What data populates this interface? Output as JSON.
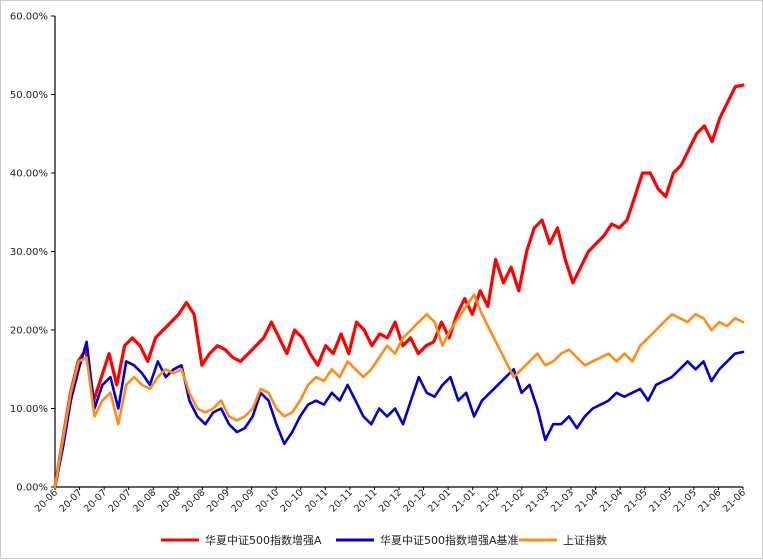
{
  "chart_data": {
    "type": "line",
    "title": "",
    "xlabel": "",
    "ylabel": "",
    "ylim": [
      0,
      60
    ],
    "y_ticks": [
      "0.00%",
      "10.00%",
      "20.00%",
      "30.00%",
      "40.00%",
      "50.00%",
      "60.00%"
    ],
    "x_ticks": [
      "20-06",
      "20-07",
      "20-07",
      "20-07",
      "20-08",
      "20-08",
      "20-08",
      "20-09",
      "20-09",
      "20-10",
      "20-10",
      "20-11",
      "20-11",
      "20-11",
      "20-12",
      "20-12",
      "21-01",
      "21-01",
      "21-02",
      "21-02",
      "21-03",
      "21-03",
      "21-04",
      "21-04",
      "21-05",
      "21-05",
      "21-05",
      "21-06",
      "21-06"
    ],
    "grid": false,
    "legend_position": "bottom",
    "series": [
      {
        "name": "华夏中证500指数增强A",
        "color": "#ff0000",
        "values": [
          0,
          6,
          12,
          16,
          17.5,
          11,
          14,
          17,
          13,
          18,
          19,
          18,
          16,
          19,
          20,
          21,
          22,
          23.5,
          22,
          15.5,
          17,
          18,
          17.5,
          16.5,
          16,
          17,
          18,
          19,
          21,
          19,
          17,
          20,
          19,
          17,
          15.5,
          18,
          17,
          19.5,
          17,
          21,
          20,
          18,
          19.5,
          19,
          21,
          18,
          19,
          17,
          18,
          18.5,
          21,
          19,
          22,
          24,
          22,
          25,
          23,
          29,
          26,
          28,
          25,
          30,
          33,
          34,
          31,
          33,
          29,
          26,
          28,
          30,
          31,
          32,
          33.5,
          33,
          34,
          37,
          40,
          40,
          38,
          37,
          40,
          41,
          43,
          45,
          46,
          44,
          47,
          49,
          51,
          51.2
        ]
      },
      {
        "name": "华夏中证500指数增强A基准",
        "color": "#0000cc",
        "values": [
          0,
          5,
          11,
          15,
          18.5,
          10,
          13,
          14,
          10,
          16,
          15.5,
          14.5,
          13,
          16,
          14,
          15,
          15.5,
          11,
          9,
          8,
          9.5,
          10,
          8,
          7,
          7.5,
          9,
          12,
          11,
          8,
          5.5,
          7,
          9,
          10.5,
          11,
          10.5,
          12,
          11,
          13,
          11,
          9,
          8,
          10,
          9,
          10,
          8,
          11,
          14,
          12,
          11.5,
          13,
          14,
          11,
          12,
          9,
          11,
          12,
          13,
          14,
          15,
          12,
          13,
          10,
          6,
          8,
          8,
          9,
          7.5,
          9,
          10,
          10.5,
          11,
          12,
          11.5,
          12,
          12.5,
          11,
          13,
          13.5,
          14,
          15,
          16,
          15,
          16,
          13.5,
          15,
          16,
          17,
          17.2
        ]
      },
      {
        "name": "上证指数",
        "color": "#ff8c1a",
        "values": [
          0,
          6,
          12,
          16,
          16.5,
          9,
          11,
          12,
          8,
          13,
          14,
          13,
          12.5,
          14,
          15,
          14.5,
          15,
          12,
          10,
          9.5,
          10,
          11,
          9,
          8.5,
          9,
          10,
          12.5,
          12,
          10,
          9,
          9.5,
          11,
          13,
          14,
          13.5,
          15,
          14,
          16,
          15,
          14,
          15,
          16.5,
          18,
          17,
          19,
          20,
          21,
          22,
          21,
          18,
          20,
          21.5,
          23,
          24.5,
          22,
          20,
          18,
          16,
          14,
          15,
          16,
          17,
          15.5,
          16,
          17,
          17.5,
          16.5,
          15.5,
          16,
          16.5,
          17,
          16,
          17,
          16,
          18,
          19,
          20,
          21,
          22,
          21.5,
          21,
          22,
          21.5,
          20,
          21,
          20.5,
          21.5,
          21
        ]
      }
    ]
  }
}
